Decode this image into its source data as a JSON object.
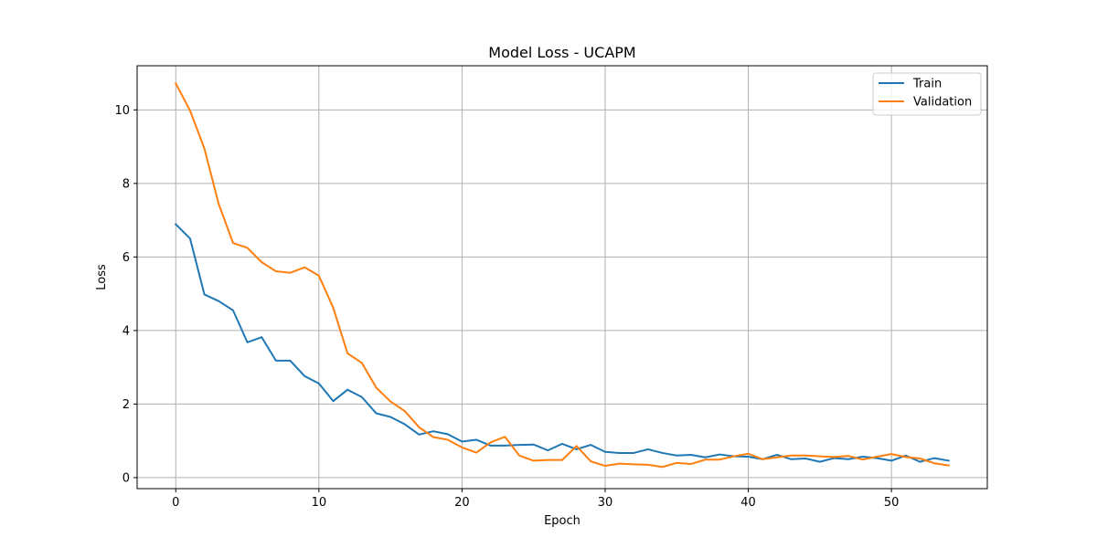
{
  "chart_data": {
    "type": "line",
    "title": "Model Loss - UCAPM",
    "xlabel": "Epoch",
    "ylabel": "Loss",
    "xlim": [
      -2.7,
      56.7
    ],
    "ylim": [
      -0.3,
      11.2
    ],
    "xticks": [
      0,
      10,
      20,
      30,
      40,
      50
    ],
    "yticks": [
      0,
      2,
      4,
      6,
      8,
      10
    ],
    "grid": true,
    "legend_position": "top-right",
    "x": [
      0,
      1,
      2,
      3,
      4,
      5,
      6,
      7,
      8,
      9,
      10,
      11,
      12,
      13,
      14,
      15,
      16,
      17,
      18,
      19,
      20,
      21,
      22,
      23,
      24,
      25,
      26,
      27,
      28,
      29,
      30,
      31,
      32,
      33,
      34,
      35,
      36,
      37,
      38,
      39,
      40,
      41,
      42,
      43,
      44,
      45,
      46,
      47,
      48,
      49,
      50,
      51,
      52,
      53,
      54
    ],
    "series": [
      {
        "name": "Train",
        "color": "#1f77b4",
        "values": [
          6.89,
          6.5,
          4.98,
          4.8,
          4.55,
          3.68,
          3.82,
          3.18,
          3.18,
          2.76,
          2.56,
          2.08,
          2.39,
          2.19,
          1.75,
          1.65,
          1.45,
          1.17,
          1.26,
          1.18,
          0.98,
          1.03,
          0.87,
          0.87,
          0.89,
          0.9,
          0.74,
          0.92,
          0.77,
          0.89,
          0.7,
          0.67,
          0.67,
          0.77,
          0.67,
          0.6,
          0.62,
          0.55,
          0.63,
          0.58,
          0.57,
          0.5,
          0.62,
          0.5,
          0.52,
          0.43,
          0.53,
          0.5,
          0.57,
          0.53,
          0.46,
          0.6,
          0.43,
          0.53,
          0.46
        ]
      },
      {
        "name": "Validation",
        "color": "#ff7f0e",
        "values": [
          10.72,
          9.98,
          8.95,
          7.44,
          6.38,
          6.25,
          5.86,
          5.61,
          5.57,
          5.72,
          5.49,
          4.62,
          3.38,
          3.12,
          2.45,
          2.07,
          1.81,
          1.37,
          1.1,
          1.03,
          0.82,
          0.68,
          0.96,
          1.11,
          0.6,
          0.46,
          0.48,
          0.48,
          0.86,
          0.44,
          0.32,
          0.38,
          0.36,
          0.35,
          0.29,
          0.4,
          0.37,
          0.49,
          0.49,
          0.58,
          0.65,
          0.5,
          0.55,
          0.6,
          0.6,
          0.58,
          0.56,
          0.59,
          0.49,
          0.57,
          0.64,
          0.56,
          0.52,
          0.39,
          0.33
        ]
      }
    ]
  }
}
